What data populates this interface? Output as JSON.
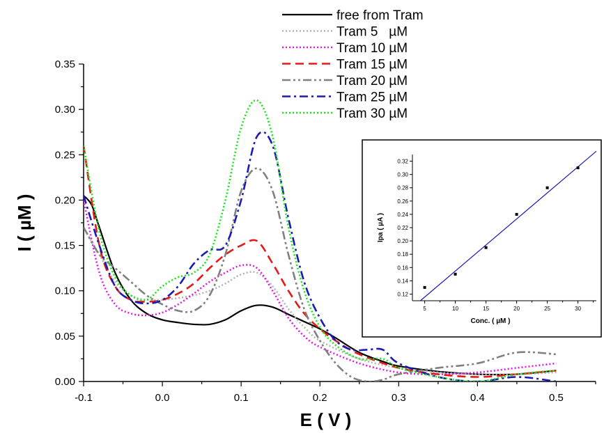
{
  "chart_data": [
    {
      "type": "line",
      "title": "",
      "xlabel": "E ( V )",
      "ylabel": "I ( µM )",
      "xlim": [
        -0.1,
        0.55
      ],
      "ylim": [
        0.0,
        0.35
      ],
      "x_ticks": [
        "-0.1",
        "0.0",
        "0.1",
        "0.2",
        "0.3",
        "0.4",
        "0.5"
      ],
      "y_ticks": [
        "0.00",
        "0.05",
        "0.10",
        "0.15",
        "0.20",
        "0.25",
        "0.30",
        "0.35"
      ],
      "grid": false,
      "legend_position": "top-right",
      "series": [
        {
          "name": "free from Tram",
          "color": "#000000",
          "dash": "solid",
          "x": [
            -0.1,
            -0.09,
            -0.08,
            -0.06,
            -0.04,
            -0.02,
            0.0,
            0.02,
            0.04,
            0.06,
            0.08,
            0.1,
            0.12,
            0.14,
            0.16,
            0.18,
            0.2,
            0.22,
            0.25,
            0.28,
            0.3,
            0.35,
            0.4,
            0.45,
            0.5
          ],
          "y": [
            0.205,
            0.195,
            0.17,
            0.12,
            0.09,
            0.075,
            0.068,
            0.065,
            0.063,
            0.063,
            0.068,
            0.078,
            0.084,
            0.082,
            0.074,
            0.066,
            0.058,
            0.048,
            0.032,
            0.022,
            0.017,
            0.011,
            0.008,
            0.008,
            0.012
          ]
        },
        {
          "name": "Tram 5   µM",
          "color": "#b4b4b4",
          "dash": "dot",
          "x": [
            -0.1,
            -0.08,
            -0.06,
            -0.04,
            -0.02,
            0.0,
            0.02,
            0.04,
            0.06,
            0.08,
            0.1,
            0.12,
            0.14,
            0.16,
            0.18,
            0.2,
            0.25,
            0.3,
            0.35,
            0.4,
            0.45,
            0.5
          ],
          "y": [
            0.17,
            0.14,
            0.11,
            0.095,
            0.09,
            0.09,
            0.092,
            0.095,
            0.1,
            0.108,
            0.118,
            0.12,
            0.105,
            0.08,
            0.06,
            0.045,
            0.025,
            0.015,
            0.01,
            0.008,
            0.008,
            0.01
          ]
        },
        {
          "name": "Tram 10 µM",
          "color": "#e619e6",
          "dash": "dot",
          "x": [
            -0.1,
            -0.08,
            -0.06,
            -0.04,
            -0.02,
            0.0,
            0.02,
            0.04,
            0.06,
            0.08,
            0.1,
            0.12,
            0.14,
            0.16,
            0.18,
            0.2,
            0.25,
            0.3,
            0.35,
            0.4,
            0.45,
            0.5
          ],
          "y": [
            0.2,
            0.12,
            0.085,
            0.075,
            0.073,
            0.076,
            0.085,
            0.097,
            0.11,
            0.12,
            0.128,
            0.125,
            0.1,
            0.07,
            0.05,
            0.038,
            0.02,
            0.01,
            0.008,
            0.01,
            0.015,
            0.02
          ]
        },
        {
          "name": "Tram 15 µM",
          "color": "#e61919",
          "dash": "dash",
          "x": [
            -0.1,
            -0.08,
            -0.06,
            -0.04,
            -0.02,
            0.0,
            0.02,
            0.04,
            0.06,
            0.08,
            0.1,
            0.12,
            0.14,
            0.16,
            0.18,
            0.2,
            0.22,
            0.25,
            0.3,
            0.35,
            0.4,
            0.45,
            0.5
          ],
          "y": [
            0.26,
            0.15,
            0.105,
            0.09,
            0.088,
            0.09,
            0.097,
            0.108,
            0.125,
            0.14,
            0.15,
            0.155,
            0.13,
            0.1,
            0.075,
            0.058,
            0.045,
            0.03,
            0.015,
            0.008,
            0.005,
            0.008,
            0.012
          ]
        },
        {
          "name": "Tram 20 µM",
          "color": "#808080",
          "dash": "dashdotdot",
          "x": [
            -0.1,
            -0.08,
            -0.06,
            -0.04,
            -0.02,
            0.0,
            0.02,
            0.04,
            0.06,
            0.08,
            0.1,
            0.12,
            0.14,
            0.16,
            0.18,
            0.2,
            0.22,
            0.24,
            0.26,
            0.28,
            0.3,
            0.35,
            0.4,
            0.45,
            0.5
          ],
          "y": [
            0.17,
            0.14,
            0.125,
            0.11,
            0.095,
            0.085,
            0.078,
            0.078,
            0.095,
            0.14,
            0.21,
            0.235,
            0.21,
            0.14,
            0.08,
            0.045,
            0.02,
            0.005,
            0.0,
            0.002,
            0.008,
            0.015,
            0.02,
            0.032,
            0.03
          ]
        },
        {
          "name": "Tram 25 µM",
          "color": "#1a1ab4",
          "dash": "dashdot",
          "x": [
            -0.1,
            -0.08,
            -0.06,
            -0.04,
            -0.02,
            0.0,
            0.02,
            0.04,
            0.06,
            0.08,
            0.1,
            0.12,
            0.14,
            0.16,
            0.18,
            0.2,
            0.22,
            0.24,
            0.26,
            0.28,
            0.3,
            0.35,
            0.4,
            0.45,
            0.5
          ],
          "y": [
            0.205,
            0.15,
            0.105,
            0.09,
            0.086,
            0.09,
            0.105,
            0.13,
            0.145,
            0.15,
            0.2,
            0.27,
            0.26,
            0.18,
            0.11,
            0.07,
            0.045,
            0.035,
            0.035,
            0.035,
            0.02,
            0.005,
            0.0,
            0.005,
            0.0
          ]
        },
        {
          "name": "Tram 30 µM",
          "color": "#19e619",
          "dash": "dot",
          "x": [
            -0.1,
            -0.08,
            -0.06,
            -0.04,
            -0.02,
            0.0,
            0.02,
            0.04,
            0.06,
            0.08,
            0.1,
            0.12,
            0.14,
            0.16,
            0.18,
            0.2,
            0.22,
            0.25,
            0.28,
            0.3,
            0.35,
            0.4,
            0.45,
            0.5
          ],
          "y": [
            0.26,
            0.165,
            0.115,
            0.095,
            0.09,
            0.105,
            0.115,
            0.12,
            0.14,
            0.2,
            0.28,
            0.31,
            0.27,
            0.17,
            0.1,
            0.06,
            0.04,
            0.025,
            0.025,
            0.015,
            0.005,
            0.0,
            0.008,
            0.012
          ]
        }
      ]
    },
    {
      "type": "scatter",
      "title": "",
      "xlabel": "Conc. ( µM )",
      "ylabel": "Ipa ( µA )",
      "xlim": [
        3,
        33
      ],
      "ylim": [
        0.11,
        0.33
      ],
      "x_ticks": [
        "5",
        "10",
        "15",
        "20",
        "25",
        "30"
      ],
      "y_ticks": [
        "0.12",
        "0.14",
        "0.16",
        "0.18",
        "0.20",
        "0.22",
        "0.24",
        "0.26",
        "0.28",
        "0.30",
        "0.32"
      ],
      "grid": false,
      "series": [
        {
          "x": [
            5,
            10,
            15,
            20,
            25,
            30
          ],
          "y": [
            0.13,
            0.15,
            0.19,
            0.24,
            0.28,
            0.31
          ],
          "color": "#000000"
        }
      ],
      "fit_line": {
        "color": "#1a1ab4",
        "x": [
          4.3,
          33
        ],
        "y": [
          0.11,
          0.335
        ]
      }
    }
  ]
}
